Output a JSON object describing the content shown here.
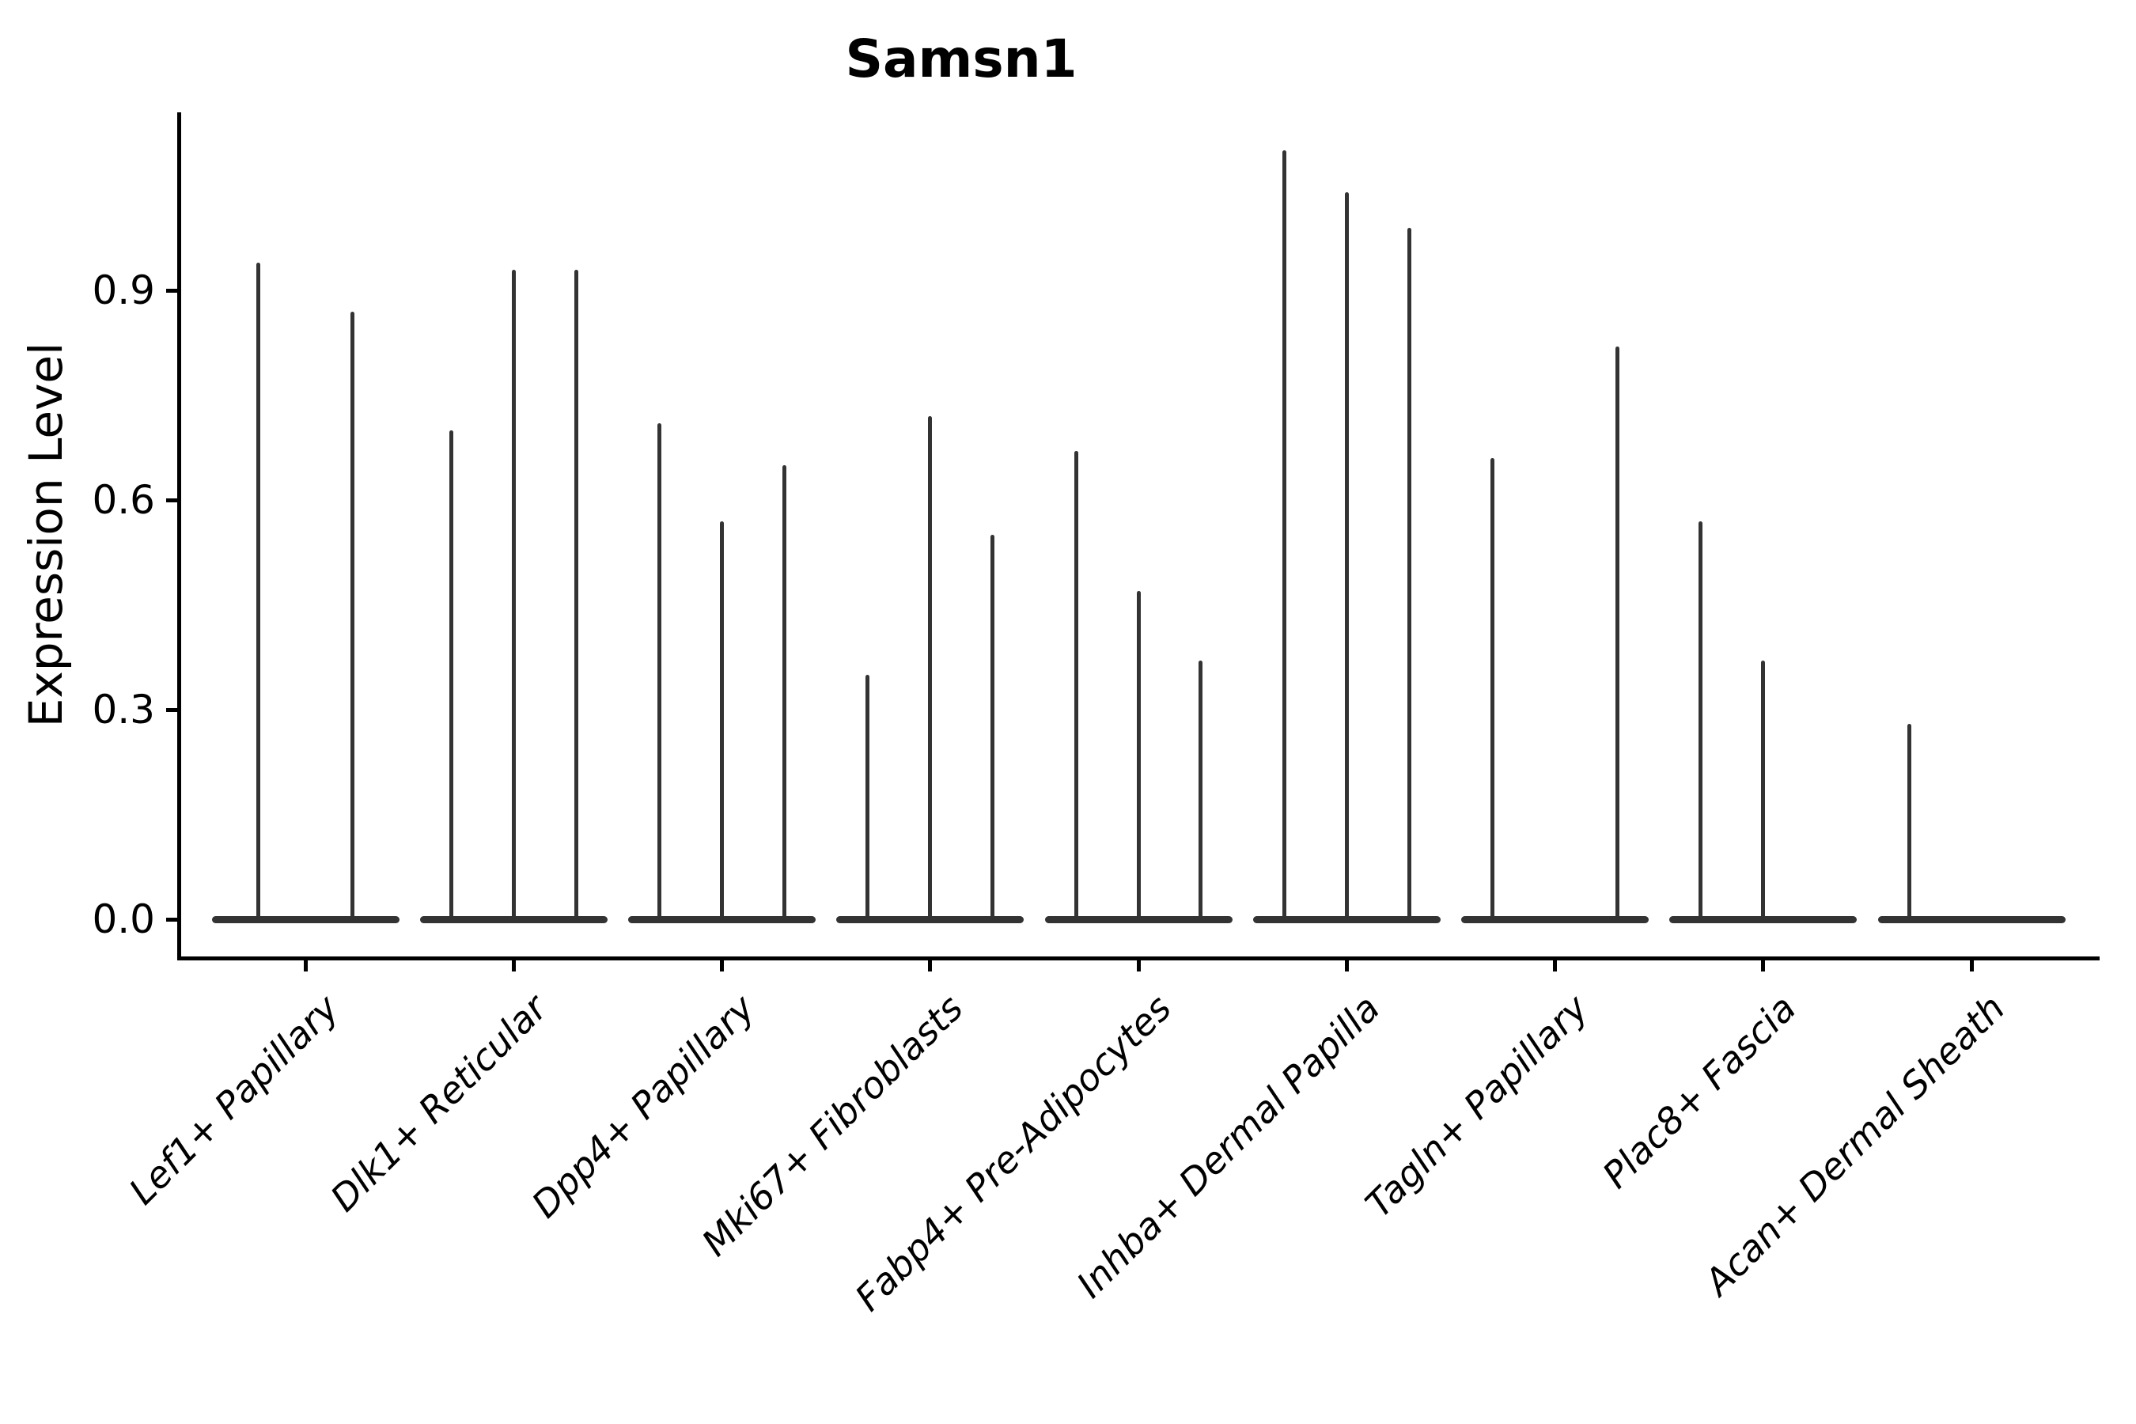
{
  "title": "Samsn1",
  "y_axis_title": "Expression Level",
  "chart_data": {
    "type": "violin",
    "title": "Samsn1",
    "xlabel": "",
    "ylabel": "Expression Level",
    "ylim": [
      -0.055,
      1.155
    ],
    "yticks": [
      0.0,
      0.3,
      0.6,
      0.9
    ],
    "ytick_labels": [
      "0.0",
      "0.3",
      "0.6",
      "0.9"
    ],
    "grid": false,
    "legend": "none",
    "violin_color": "#333333",
    "categories": [
      "Lef1+ Papillary",
      "Dlk1+ Reticular",
      "Dpp4+ Papillary",
      "Mki67+ Fibroblasts",
      "Fabp4+ Pre-Adipocytes",
      "Inhba+ Dermal Papilla",
      "Tagln+ Papillary",
      "Plac8+ Fascia",
      "Acan+ Dermal Sheath"
    ],
    "description": "Collapsed violins: wide flat base at expression 0 for every category with thin needle spikes rising to the maximum expression of each dodged sub-violin.",
    "violins": [
      {
        "category": "Lef1+ Papillary",
        "needles": [
          {
            "x_offset": -0.225,
            "value": 0.94
          },
          {
            "x_offset": 0.225,
            "value": 0.87
          }
        ]
      },
      {
        "category": "Dlk1+ Reticular",
        "needles": [
          {
            "x_offset": -0.3,
            "value": 0.7
          },
          {
            "x_offset": 0.0,
            "value": 0.93
          },
          {
            "x_offset": 0.3,
            "value": 0.93
          }
        ]
      },
      {
        "category": "Dpp4+ Papillary",
        "needles": [
          {
            "x_offset": -0.3,
            "value": 0.71
          },
          {
            "x_offset": 0.0,
            "value": 0.57
          },
          {
            "x_offset": 0.3,
            "value": 0.65
          }
        ]
      },
      {
        "category": "Mki67+ Fibroblasts",
        "needles": [
          {
            "x_offset": -0.3,
            "value": 0.35
          },
          {
            "x_offset": 0.0,
            "value": 0.72
          },
          {
            "x_offset": 0.3,
            "value": 0.55
          }
        ]
      },
      {
        "category": "Fabp4+ Pre-Adipocytes",
        "needles": [
          {
            "x_offset": -0.3,
            "value": 0.67
          },
          {
            "x_offset": 0.0,
            "value": 0.47
          },
          {
            "x_offset": 0.3,
            "value": 0.37
          }
        ]
      },
      {
        "category": "Inhba+ Dermal Papilla",
        "needles": [
          {
            "x_offset": -0.3,
            "value": 1.1
          },
          {
            "x_offset": 0.0,
            "value": 1.04
          },
          {
            "x_offset": 0.3,
            "value": 0.99
          }
        ]
      },
      {
        "category": "Tagln+ Papillary",
        "needles": [
          {
            "x_offset": -0.3,
            "value": 0.66
          },
          {
            "x_offset": 0.3,
            "value": 0.82
          }
        ]
      },
      {
        "category": "Plac8+ Fascia",
        "needles": [
          {
            "x_offset": -0.3,
            "value": 0.57
          },
          {
            "x_offset": 0.0,
            "value": 0.37
          }
        ]
      },
      {
        "category": "Acan+ Dermal Sheath",
        "needles": [
          {
            "x_offset": -0.3,
            "value": 0.28
          }
        ]
      }
    ]
  }
}
